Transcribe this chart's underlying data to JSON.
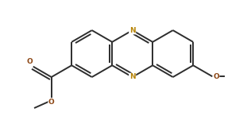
{
  "bg_color": "#ffffff",
  "bond_color": "#2d2d2d",
  "N_color": "#b8860b",
  "O_color": "#8b4513",
  "lw": 1.4,
  "dbo": 0.022,
  "shrink": 0.12,
  "fig_width": 3.11,
  "fig_height": 1.51,
  "xlim": [
    -0.85,
    0.75
  ],
  "ylim": [
    -0.42,
    0.52
  ]
}
